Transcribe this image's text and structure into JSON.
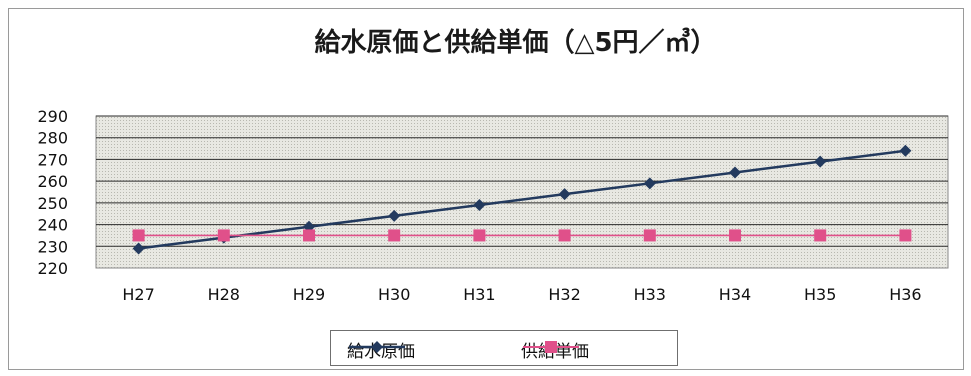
{
  "chart_data": {
    "type": "line",
    "title": "給水原価と供給単価（△5円／㎥）",
    "categories": [
      "H27",
      "H28",
      "H29",
      "H30",
      "H31",
      "H32",
      "H33",
      "H34",
      "H35",
      "H36"
    ],
    "series": [
      {
        "name": "給水原価",
        "values": [
          229,
          234,
          239,
          244,
          249,
          254,
          259,
          264,
          269,
          274
        ],
        "color": "#233a5e",
        "marker": "diamond"
      },
      {
        "name": "供給単価",
        "values": [
          235,
          235,
          235,
          235,
          235,
          235,
          235,
          235,
          235,
          235
        ],
        "color": "#e0508a",
        "marker": "square"
      }
    ],
    "ylim": [
      220,
      290
    ],
    "yticks": [
      220,
      230,
      240,
      250,
      260,
      270,
      280,
      290
    ],
    "grid": true,
    "legend": "bottom",
    "colors": {
      "plot_bg": "#e6e6e0",
      "grid": "#2a2a2a"
    }
  }
}
